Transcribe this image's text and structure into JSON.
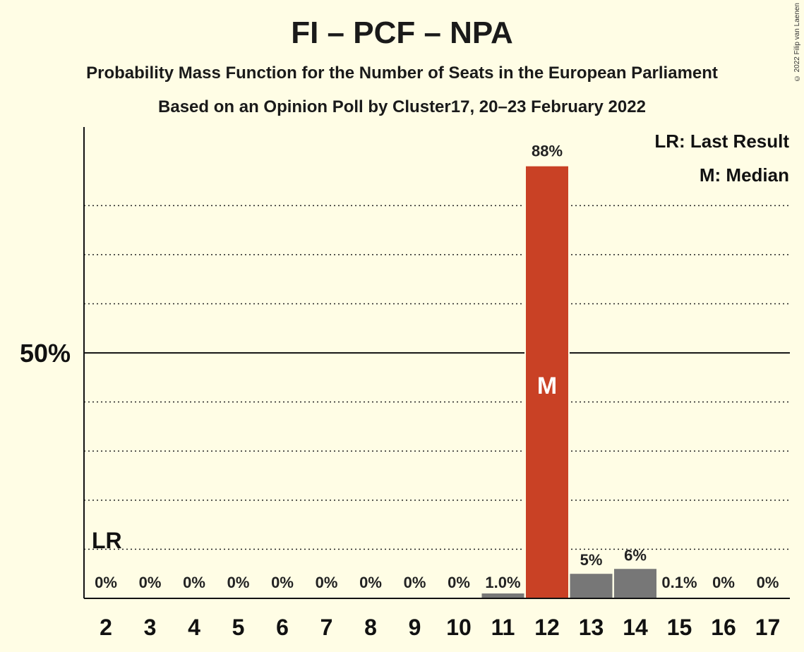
{
  "chart_data": {
    "type": "bar",
    "title": "FI – PCF – NPA",
    "subtitle": "Probability Mass Function for the Number of Seats in the European Parliament",
    "subtitle2": "Based on an Opinion Poll by Cluster17, 20–23 February 2022",
    "categories": [
      "2",
      "3",
      "4",
      "5",
      "6",
      "7",
      "8",
      "9",
      "10",
      "11",
      "12",
      "13",
      "14",
      "15",
      "16",
      "17"
    ],
    "values": [
      0,
      0,
      0,
      0,
      0,
      0,
      0,
      0,
      0,
      1.0,
      88,
      5,
      6,
      0.1,
      0,
      0
    ],
    "value_labels": [
      "0%",
      "0%",
      "0%",
      "0%",
      "0%",
      "0%",
      "0%",
      "0%",
      "0%",
      "1.0%",
      "88%",
      "5%",
      "6%",
      "0.1%",
      "0%",
      "0%"
    ],
    "ylim": [
      0,
      96
    ],
    "y_tick_label": "50%",
    "y_tick_value": 50,
    "minor_gridlines": [
      10,
      20,
      30,
      40,
      60,
      70,
      80
    ],
    "median_seat": "12",
    "median_marker": "M",
    "last_result_seat": "2",
    "last_result_marker": "LR",
    "legend": [
      "LR: Last Result",
      "M: Median"
    ],
    "legend_position": "top-right",
    "colors": {
      "median": "#c94125",
      "other": "#777777",
      "background": "#fffde5"
    }
  },
  "copyright": "© 2022 Filip van Laenen"
}
